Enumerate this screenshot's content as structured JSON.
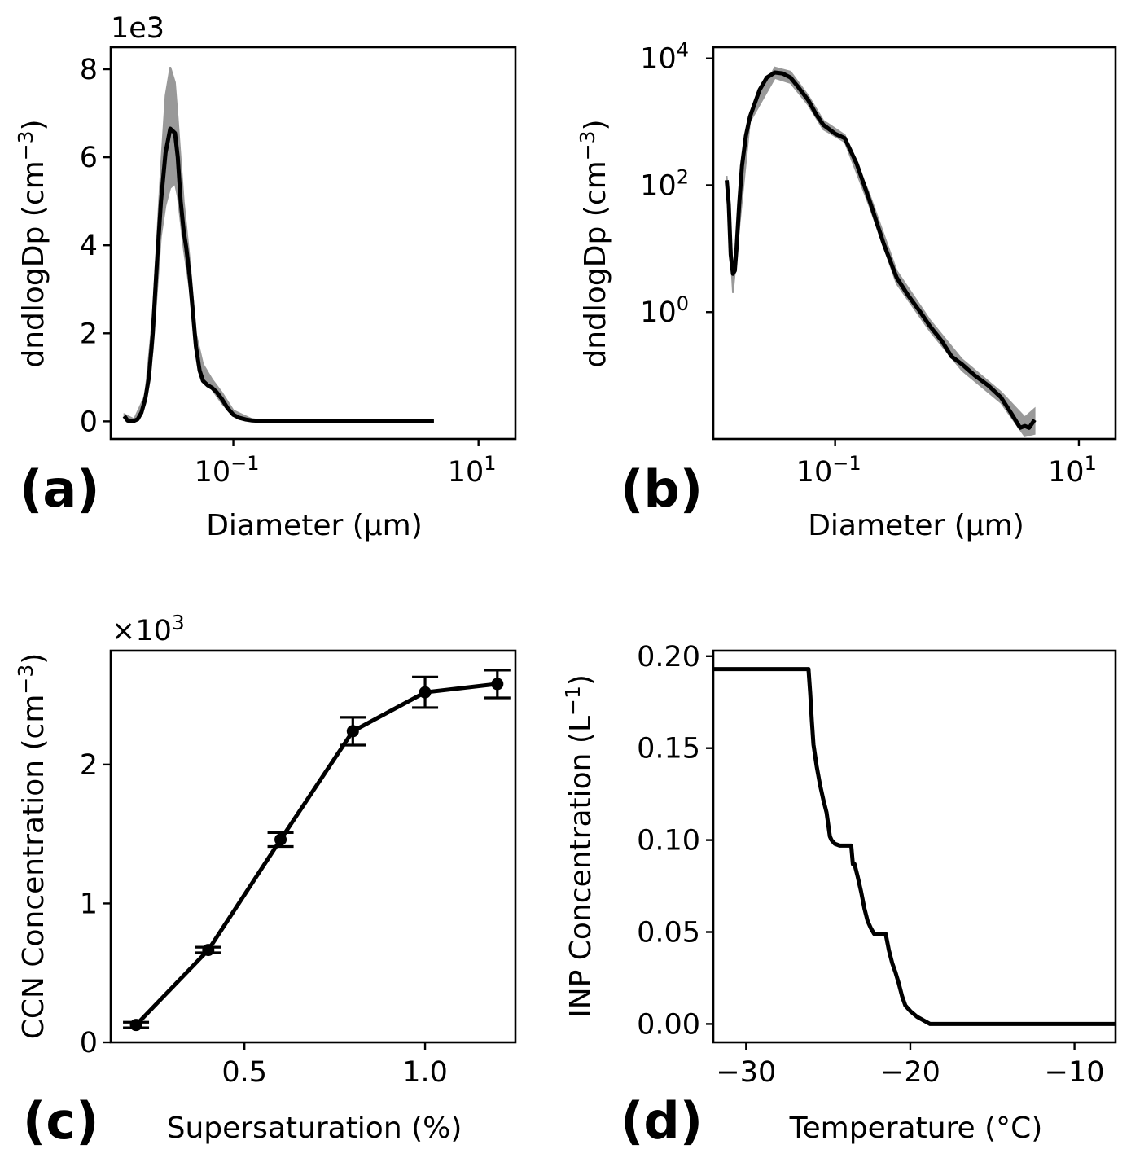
{
  "chart_data": [
    {
      "id": "a",
      "type": "line",
      "panel_label": "(a)",
      "xlabel": "Diameter (μm)",
      "ylabel": "dndlogDp (cm−3)",
      "offset_text": "1e3",
      "xscale": "log",
      "xlim": [
        0.01,
        20
      ],
      "ylim": [
        -0.4,
        8.5
      ],
      "xticks": [
        {
          "value": 0.1,
          "base": "10",
          "exp": "−1"
        },
        {
          "value": 10,
          "base": "10",
          "exp": "1"
        }
      ],
      "yticks": [
        0,
        2,
        4,
        6,
        8
      ],
      "series": [
        {
          "name": "mean",
          "color": "#000000",
          "x": [
            0.0129,
            0.0137,
            0.0145,
            0.0155,
            0.0166,
            0.0178,
            0.0191,
            0.0205,
            0.022,
            0.0237,
            0.0257,
            0.028,
            0.0306,
            0.0334,
            0.0352,
            0.0372,
            0.0394,
            0.0413,
            0.044,
            0.0467,
            0.0495,
            0.0531,
            0.0566,
            0.0617,
            0.0672,
            0.0732,
            0.081,
            0.0897,
            0.1,
            0.112,
            0.127,
            0.142,
            0.162,
            0.186,
            0.221,
            0.276,
            0.364,
            0.544,
            1.0,
            2.0,
            4.33
          ],
          "y": [
            0.12,
            0.02,
            0.0,
            0.01,
            0.05,
            0.2,
            0.5,
            1.0,
            2.0,
            3.5,
            5.0,
            6.1,
            6.65,
            6.55,
            6.0,
            5.0,
            4.3,
            3.95,
            3.3,
            2.5,
            1.7,
            1.15,
            0.92,
            0.82,
            0.76,
            0.66,
            0.5,
            0.3,
            0.15,
            0.08,
            0.04,
            0.02,
            0.01,
            0.0,
            0.0,
            0.0,
            0.0,
            0.0,
            0.0,
            0.0,
            0.0
          ]
        },
        {
          "name": "band",
          "color": "#999999",
          "x": [
            0.0129,
            0.0155,
            0.0191,
            0.022,
            0.0257,
            0.028,
            0.0306,
            0.0334,
            0.0352,
            0.0394,
            0.044,
            0.0495,
            0.0566,
            0.0672,
            0.081,
            0.1,
            0.142,
            0.221,
            4.33
          ],
          "upper": [
            0.16,
            0.05,
            0.6,
            2.4,
            5.8,
            7.4,
            8.05,
            7.7,
            6.9,
            5.0,
            3.7,
            2.0,
            1.3,
            0.95,
            0.65,
            0.25,
            0.05,
            0.0,
            0.0
          ],
          "lower": [
            0.08,
            0.0,
            0.4,
            1.6,
            4.2,
            4.9,
            5.3,
            5.4,
            5.1,
            3.9,
            3.0,
            1.5,
            0.95,
            0.72,
            0.4,
            0.12,
            0.01,
            0.0,
            0.0
          ]
        }
      ]
    },
    {
      "id": "b",
      "type": "line",
      "panel_label": "(b)",
      "xlabel": "Diameter (μm)",
      "ylabel": "dndlogDp (cm−3)",
      "xscale": "log",
      "yscale": "log",
      "xlim": [
        0.01,
        20
      ],
      "ylim": [
        0.01,
        15000
      ],
      "xticks": [
        {
          "value": 0.1,
          "base": "10",
          "exp": "−1"
        },
        {
          "value": 10,
          "base": "10",
          "exp": "1"
        }
      ],
      "yticks": [
        {
          "value": 1,
          "base": "10",
          "exp": "0"
        },
        {
          "value": 100,
          "base": "10",
          "exp": "2"
        },
        {
          "value": 10000,
          "base": "10",
          "exp": "4"
        }
      ],
      "series": [
        {
          "name": "mean",
          "color": "#000000",
          "x": [
            0.0129,
            0.0134,
            0.0139,
            0.0145,
            0.015,
            0.0155,
            0.0163,
            0.0172,
            0.0185,
            0.02,
            0.022,
            0.024,
            0.0275,
            0.032,
            0.037,
            0.043,
            0.05,
            0.06,
            0.07,
            0.08,
            0.1,
            0.12,
            0.15,
            0.19,
            0.25,
            0.32,
            0.4,
            0.5,
            0.6,
            0.75,
            0.9,
            1.1,
            1.4,
            1.8,
            2.3,
            2.8,
            3.3,
            3.6,
            3.9,
            4.33
          ],
          "y": [
            120,
            50,
            8,
            4,
            4.5,
            10,
            50,
            200,
            600,
            1200,
            2000,
            3200,
            5000,
            6000,
            5800,
            5000,
            3500,
            2200,
            1300,
            900,
            650,
            550,
            220,
            60,
            12,
            3.5,
            1.8,
            1.0,
            0.6,
            0.35,
            0.2,
            0.15,
            0.1,
            0.07,
            0.045,
            0.025,
            0.015,
            0.016,
            0.015,
            0.02
          ]
        },
        {
          "name": "band",
          "color": "#999999",
          "x": [
            0.0129,
            0.0145,
            0.0155,
            0.02,
            0.032,
            0.043,
            0.06,
            0.08,
            0.12,
            0.19,
            0.32,
            0.6,
            1.1,
            2.3,
            3.6,
            4.33
          ],
          "upper": [
            140,
            5.0,
            12,
            1400,
            7200,
            6200,
            2600,
            1050,
            620,
            75,
            4.5,
            0.75,
            0.18,
            0.055,
            0.022,
            0.03
          ],
          "lower": [
            100,
            2.0,
            8,
            1000,
            4900,
            4100,
            1850,
            760,
            480,
            48,
            2.8,
            0.5,
            0.12,
            0.037,
            0.011,
            0.012
          ]
        }
      ]
    },
    {
      "id": "c",
      "type": "line",
      "panel_label": "(c)",
      "xlabel": "Supersaturation (%)",
      "ylabel": "CCN Concentration (cm−3)",
      "offset_text": "×103",
      "xlim": [
        0.13,
        1.25
      ],
      "ylim": [
        0,
        2.82
      ],
      "xticks": [
        0.5,
        1.0
      ],
      "xtick_labels": [
        "0.5",
        "1.0"
      ],
      "yticks": [
        0,
        1,
        2
      ],
      "series": [
        {
          "name": "CCN",
          "color": "#000000",
          "x": [
            0.2,
            0.4,
            0.6,
            0.8,
            1.0,
            1.2
          ],
          "y": [
            0.125,
            0.665,
            1.46,
            2.24,
            2.52,
            2.58
          ],
          "yerr": [
            0.02,
            0.02,
            0.05,
            0.1,
            0.11,
            0.1
          ]
        }
      ]
    },
    {
      "id": "d",
      "type": "line",
      "panel_label": "(d)",
      "xlabel": "Temperature (°C)",
      "ylabel": "INP Concentration (L−1)",
      "xlim": [
        -32,
        -7.5
      ],
      "ylim": [
        -0.01,
        0.203
      ],
      "xticks": [
        -30,
        -20,
        -10
      ],
      "xtick_labels": [
        "−30",
        "−20",
        "−10"
      ],
      "yticks": [
        0.0,
        0.05,
        0.1,
        0.15,
        0.2
      ],
      "ytick_labels": [
        "0.00",
        "0.05",
        "0.10",
        "0.15",
        "0.20"
      ],
      "series": [
        {
          "name": "INP",
          "color": "#000000",
          "step": true,
          "x": [
            -32,
            -26.2,
            -26.1,
            -26.0,
            -25.9,
            -25.7,
            -25.5,
            -25.3,
            -25.1,
            -24.9,
            -24.8,
            -24.6,
            -24.3,
            -24.0,
            -23.6,
            -23.5,
            -23.4,
            -23.2,
            -23.0,
            -22.8,
            -22.6,
            -22.4,
            -22.2,
            -22.0,
            -21.5,
            -21.3,
            -21.1,
            -20.9,
            -20.7,
            -20.5,
            -20.3,
            -20.0,
            -19.6,
            -19.2,
            -18.8,
            -7.5
          ],
          "y": [
            0.193,
            0.193,
            0.18,
            0.165,
            0.152,
            0.14,
            0.13,
            0.122,
            0.115,
            0.102,
            0.1,
            0.098,
            0.097,
            0.097,
            0.097,
            0.087,
            0.087,
            0.08,
            0.072,
            0.063,
            0.056,
            0.052,
            0.049,
            0.049,
            0.049,
            0.04,
            0.033,
            0.028,
            0.022,
            0.015,
            0.01,
            0.007,
            0.004,
            0.002,
            0.0,
            0.0
          ]
        }
      ]
    }
  ]
}
